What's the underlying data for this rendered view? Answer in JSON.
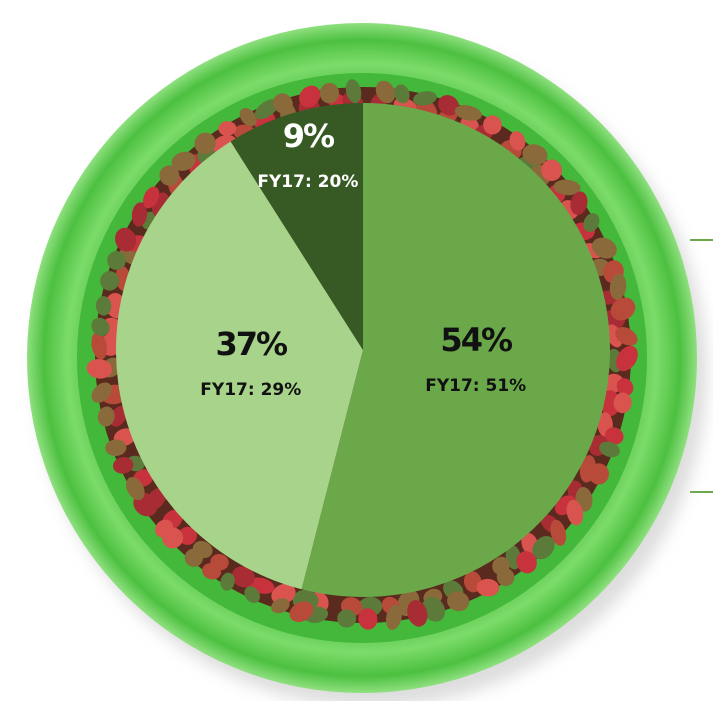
{
  "chart_data": {
    "type": "pie",
    "values": [
      54,
      37,
      9
    ],
    "value_labels": [
      "54%",
      "37%",
      "9%"
    ],
    "sublabels": [
      "FY17: 51%",
      "FY17: 29%",
      "FY17: 20%"
    ],
    "colors": [
      "#6aa84a",
      "#a8d38b",
      "#375a25"
    ]
  }
}
